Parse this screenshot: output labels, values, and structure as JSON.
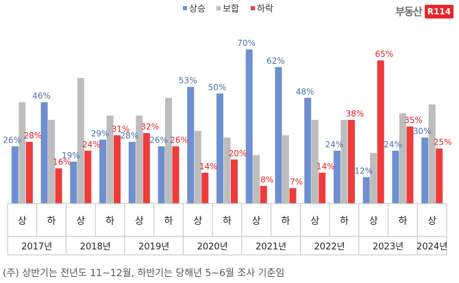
{
  "logo": {
    "text": "부동산",
    "badge": "R114"
  },
  "footnote": "(주) 상반기는 전년도 11~12월, 하반기는 당해년 5~6월 조사 기준임",
  "chart_data": {
    "type": "bar",
    "legend_position": "top",
    "grid": false,
    "ylim": [
      0,
      80
    ],
    "colors": {
      "상승": "#6f8fd0",
      "보합": "#bdbdbd",
      "하락": "#ee3b3b"
    },
    "categories": [
      "상",
      "하",
      "상",
      "하",
      "상",
      "하",
      "상",
      "하",
      "상",
      "하",
      "상",
      "하",
      "상",
      "하",
      "상"
    ],
    "years": [
      "2017년",
      "2018년",
      "2019년",
      "2020년",
      "2021년",
      "2022년",
      "2023년",
      "2024년"
    ],
    "series": [
      {
        "name": "상승",
        "values": [
          26,
          46,
          19,
          29,
          28,
          26,
          53,
          50,
          70,
          62,
          48,
          24,
          12,
          24,
          30
        ],
        "labels": [
          "26%",
          "46%",
          "19%",
          "29%",
          "28%",
          "26%",
          "53%",
          "50%",
          "70%",
          "62%",
          "48%",
          "24%",
          "12%",
          "24%",
          "30%"
        ]
      },
      {
        "name": "보합",
        "values": [
          46,
          38,
          57,
          40,
          40,
          48,
          33,
          30,
          22,
          31,
          38,
          38,
          23,
          41,
          45
        ],
        "labels": []
      },
      {
        "name": "하락",
        "values": [
          28,
          16,
          24,
          31,
          32,
          26,
          14,
          20,
          8,
          7,
          14,
          38,
          65,
          35,
          25
        ],
        "labels": [
          "28%",
          "16%",
          "24%",
          "31%",
          "32%",
          "26%",
          "14%",
          "20%",
          "8%",
          "7%",
          "14%",
          "38%",
          "65%",
          "35%",
          "25%"
        ]
      }
    ]
  }
}
